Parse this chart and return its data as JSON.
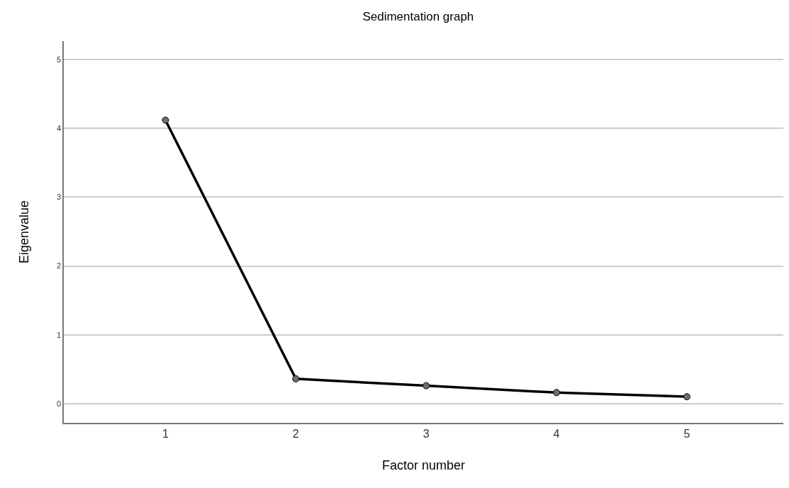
{
  "chart_data": {
    "type": "line",
    "title": "Sedimentation graph",
    "xlabel": "Factor number",
    "ylabel": "Eigenvalue",
    "x": [
      1,
      2,
      3,
      4,
      5
    ],
    "series": [
      {
        "color": "#000000",
        "values": [
          4.12,
          0.36,
          0.26,
          0.16,
          0.1
        ]
      }
    ],
    "xlim": [
      0.22,
      5.74
    ],
    "xticks": [
      1,
      2,
      3,
      4,
      5
    ],
    "ylim": [
      -0.28,
      5.27
    ],
    "yticks": [
      0,
      1,
      2,
      3,
      4,
      5
    ],
    "grid": "y",
    "marker": "circle",
    "line_style": "solid"
  }
}
